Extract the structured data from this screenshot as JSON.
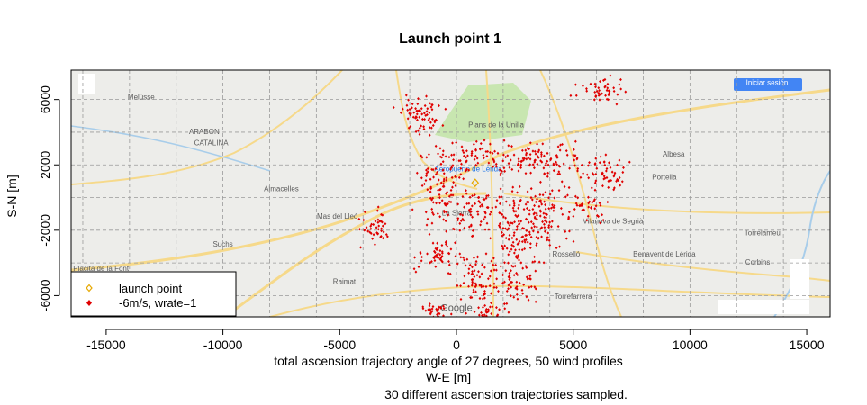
{
  "chart_data": {
    "type": "scatter",
    "title": "Launch point 1",
    "xlabel": "W-E [m]",
    "ylabel": "S-N [m]",
    "subtitle": "total ascension trajectory angle of 27 degrees, 50 wind profiles",
    "note": "30 different ascension trajectories sampled.",
    "xlim": [
      -16500,
      16000
    ],
    "ylim": [
      -7300,
      7800
    ],
    "x_ticks": [
      -15000,
      -10000,
      -5000,
      0,
      5000,
      10000,
      15000
    ],
    "x_tick_labels": [
      "-15000",
      "-10000",
      "-5000",
      "0",
      "5000",
      "10000",
      "15000"
    ],
    "y_ticks": [
      -6000,
      -2000,
      2000,
      6000
    ],
    "y_tick_labels": [
      "-6000",
      "-2000",
      "2000",
      "6000"
    ],
    "grid": true,
    "legend_position": "bottom-left",
    "legend": [
      {
        "label": "launch point",
        "color": "#e6a800",
        "marker": "open-diamond"
      },
      {
        "label": "-6m/s, wrate=1",
        "color": "#e00000",
        "marker": "filled-diamond"
      }
    ],
    "launch_point": {
      "x": 800,
      "y": 900
    },
    "clusters": [
      {
        "x": -1500,
        "y": 5000,
        "sx": 450,
        "sy": 550,
        "n": 70
      },
      {
        "x": 6200,
        "y": 6600,
        "sx": 500,
        "sy": 350,
        "n": 45
      },
      {
        "x": 1000,
        "y": 2600,
        "sx": 550,
        "sy": 420,
        "n": 40
      },
      {
        "x": 3800,
        "y": 2200,
        "sx": 1200,
        "sy": 500,
        "n": 130
      },
      {
        "x": 6300,
        "y": 1300,
        "sx": 450,
        "sy": 550,
        "n": 45
      },
      {
        "x": -600,
        "y": 800,
        "sx": 550,
        "sy": 1300,
        "n": 120
      },
      {
        "x": 1200,
        "y": -1000,
        "sx": 650,
        "sy": 800,
        "n": 85
      },
      {
        "x": 3500,
        "y": -1200,
        "sx": 800,
        "sy": 1100,
        "n": 150
      },
      {
        "x": 5600,
        "y": -500,
        "sx": 450,
        "sy": 400,
        "n": 35
      },
      {
        "x": -3400,
        "y": -1900,
        "sx": 400,
        "sy": 450,
        "n": 45
      },
      {
        "x": -700,
        "y": -3600,
        "sx": 500,
        "sy": 500,
        "n": 55
      },
      {
        "x": 2600,
        "y": -4000,
        "sx": 550,
        "sy": 1200,
        "n": 110
      },
      {
        "x": 800,
        "y": -5000,
        "sx": 420,
        "sy": 700,
        "n": 65
      },
      {
        "x": -1000,
        "y": -6900,
        "sx": 350,
        "sy": 250,
        "n": 30
      },
      {
        "x": 1500,
        "y": -7000,
        "sx": 400,
        "sy": 300,
        "n": 35
      }
    ]
  },
  "map": {
    "colors": {
      "land": "#ededea",
      "park": "#c8e6b0",
      "road": "#f6d98a",
      "river": "#a8cdea",
      "points": "#e00000",
      "grid": "#9a9a9a"
    },
    "labels": [
      {
        "text": "Plans de la Unilla",
        "x": 1700,
        "y": 4300
      },
      {
        "text": "Aeropuerto de Lérida",
        "x": 500,
        "y": 1600
      },
      {
        "text": "Albesa",
        "x": 9300,
        "y": 2500
      },
      {
        "text": "Portella",
        "x": 8900,
        "y": 1100
      },
      {
        "text": "Almacelles",
        "x": -7500,
        "y": 400
      },
      {
        "text": "Mas del Lleó",
        "x": -5100,
        "y": -1300
      },
      {
        "text": "La Sierra",
        "x": 0,
        "y": -1100
      },
      {
        "text": "Suchs",
        "x": -10000,
        "y": -3000
      },
      {
        "text": "Vilanova de Segrià",
        "x": 6700,
        "y": -1600
      },
      {
        "text": "Benavent de Lérida",
        "x": 8900,
        "y": -3600
      },
      {
        "text": "Rosselló",
        "x": 4700,
        "y": -3600
      },
      {
        "text": "Torrefarrera",
        "x": 5000,
        "y": -6200
      },
      {
        "text": "Torrelameu",
        "x": 13100,
        "y": -2300
      },
      {
        "text": "Corbins",
        "x": 12900,
        "y": -4100
      },
      {
        "text": "Raimat",
        "x": -4800,
        "y": -5300
      },
      {
        "text": "Melüsse",
        "x": -13500,
        "y": 6000
      },
      {
        "text": "ARABON",
        "x": -10800,
        "y": 3900
      },
      {
        "text": "CATALINA",
        "x": -10500,
        "y": 3200
      },
      {
        "text": "El Placita de la Font",
        "x": -15400,
        "y": -4500
      },
      {
        "text": "Iniciar sesión",
        "x": 13300,
        "y": 6900
      },
      {
        "text": "Google",
        "x": 0,
        "y": -6950
      }
    ]
  }
}
